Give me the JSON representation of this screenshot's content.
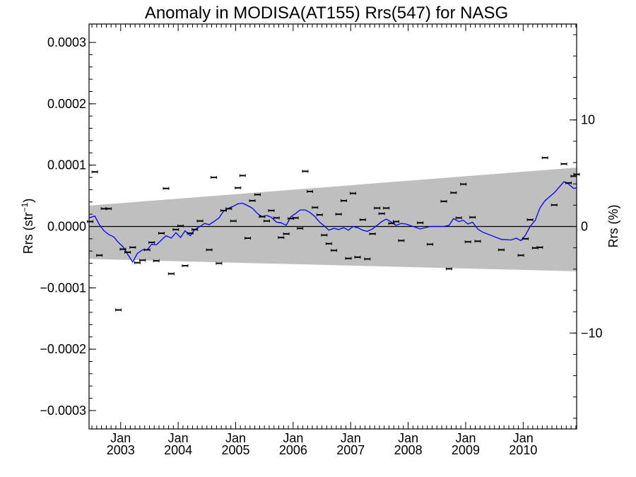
{
  "chart_data": {
    "type": "scatter",
    "title": "Anomaly in MODISA(AT155) Rrs(547) for NASG",
    "ylabel_left": "Rrs (str",
    "ylabel_left_sup": "−1",
    "ylabel_left_close": ")",
    "ylabel_right": "Rrs (%)",
    "xlim": [
      2002.45,
      2010.93
    ],
    "ylim": [
      -0.00033,
      0.00033
    ],
    "ylim_right": [
      -19.0,
      19.0
    ],
    "y_ticks": [
      {
        "value": 0.0003,
        "label": "0.0003"
      },
      {
        "value": 0.0002,
        "label": "0.0002"
      },
      {
        "value": 0.0001,
        "label": "0.0001"
      },
      {
        "value": 0.0,
        "label": "0.0000"
      },
      {
        "value": -0.0001,
        "label": "−0.0001"
      },
      {
        "value": -0.0002,
        "label": "−0.0002"
      },
      {
        "value": -0.0003,
        "label": "−0.0003"
      }
    ],
    "y_right_ticks": [
      {
        "value": 10,
        "label": "10"
      },
      {
        "value": 0,
        "label": "0"
      },
      {
        "value": -10,
        "label": "−10"
      }
    ],
    "x_ticks": [
      {
        "value": 2003.0,
        "month": "Jan",
        "year": "2003"
      },
      {
        "value": 2004.0,
        "month": "Jan",
        "year": "2004"
      },
      {
        "value": 2005.0,
        "month": "Jan",
        "year": "2005"
      },
      {
        "value": 2006.0,
        "month": "Jan",
        "year": "2006"
      },
      {
        "value": 2007.0,
        "month": "Jan",
        "year": "2007"
      },
      {
        "value": 2008.0,
        "month": "Jan",
        "year": "2008"
      },
      {
        "value": 2009.0,
        "month": "Jan",
        "year": "2009"
      },
      {
        "value": 2010.0,
        "month": "Jan",
        "year": "2010"
      }
    ],
    "band": {
      "x": [
        2002.45,
        2010.93
      ],
      "upper": [
        3.4e-05,
        9.6e-05
      ],
      "lower": [
        -5.3e-05,
        -7.3e-05
      ]
    },
    "points": [
      [
        2002.47,
        8e-06
      ],
      [
        2002.55,
        8.9e-05
      ],
      [
        2002.63,
        -4.7e-05
      ],
      [
        2002.71,
        2.9e-05
      ],
      [
        2002.79,
        2.9e-05
      ],
      [
        2002.96,
        -0.000136
      ],
      [
        2003.04,
        -3.7e-05
      ],
      [
        2003.12,
        -4.2e-05
      ],
      [
        2003.21,
        -3.4e-05
      ],
      [
        2003.29,
        -5.9e-05
      ],
      [
        2003.38,
        -5.5e-05
      ],
      [
        2003.46,
        -3.8e-05
      ],
      [
        2003.54,
        -2.6e-05
      ],
      [
        2003.62,
        -5.6e-05
      ],
      [
        2003.71,
        -1.1e-05
      ],
      [
        2003.79,
        6.2e-05
      ],
      [
        2003.88,
        -7.7e-05
      ],
      [
        2003.96,
        -5e-06
      ],
      [
        2004.04,
        1e-06
      ],
      [
        2004.12,
        -6.4e-05
      ],
      [
        2004.21,
        -1.1e-05
      ],
      [
        2004.29,
        -5e-06
      ],
      [
        2004.38,
        9e-06
      ],
      [
        2004.54,
        -3.8e-05
      ],
      [
        2004.62,
        8e-05
      ],
      [
        2004.71,
        -6e-05
      ],
      [
        2004.79,
        2.6e-05
      ],
      [
        2004.88,
        2.9e-05
      ],
      [
        2004.96,
        9e-06
      ],
      [
        2005.04,
        6.3e-05
      ],
      [
        2005.12,
        8.3e-05
      ],
      [
        2005.21,
        -1.9e-05
      ],
      [
        2005.29,
        4.2e-05
      ],
      [
        2005.38,
        5.2e-05
      ],
      [
        2005.46,
        1.6e-05
      ],
      [
        2005.54,
        9e-06
      ],
      [
        2005.62,
        2.6e-05
      ],
      [
        2005.71,
        1.4e-05
      ],
      [
        2005.79,
        -1.8e-05
      ],
      [
        2005.88,
        -1.2e-05
      ],
      [
        2005.96,
        1.3e-05
      ],
      [
        2006.04,
        1.4e-05
      ],
      [
        2006.12,
        -3e-06
      ],
      [
        2006.21,
        9e-05
      ],
      [
        2006.29,
        5.7e-05
      ],
      [
        2006.38,
        3.1e-05
      ],
      [
        2006.46,
        1.9e-05
      ],
      [
        2006.54,
        -1.4e-05
      ],
      [
        2006.62,
        -2.8e-05
      ],
      [
        2006.71,
        -3.9e-05
      ],
      [
        2006.79,
        2e-05
      ],
      [
        2006.88,
        4.2e-05
      ],
      [
        2006.96,
        -5.2e-05
      ],
      [
        2007.04,
        5.4e-05
      ],
      [
        2007.12,
        -5e-05
      ],
      [
        2007.21,
        1.1e-05
      ],
      [
        2007.29,
        -5.3e-05
      ],
      [
        2007.38,
        -1.2e-05
      ],
      [
        2007.46,
        3e-05
      ],
      [
        2007.54,
        2.1e-05
      ],
      [
        2007.62,
        3e-05
      ],
      [
        2007.71,
        5e-06
      ],
      [
        2007.79,
        8e-06
      ],
      [
        2007.88,
        -2.3e-05
      ],
      [
        2008.21,
        6e-06
      ],
      [
        2008.38,
        -2.9e-05
      ],
      [
        2008.62,
        4.1e-05
      ],
      [
        2008.71,
        -6.9e-05
      ],
      [
        2008.79,
        5.5e-05
      ],
      [
        2008.88,
        1.4e-05
      ],
      [
        2008.96,
        6.9e-05
      ],
      [
        2009.04,
        -2.5e-05
      ],
      [
        2009.12,
        1.5e-05
      ],
      [
        2009.21,
        -2.4e-05
      ],
      [
        2009.62,
        -3.8e-05
      ],
      [
        2009.96,
        -4.7e-05
      ],
      [
        2010.04,
        -2e-05
      ],
      [
        2010.12,
        1.1e-05
      ],
      [
        2010.21,
        -3.5e-05
      ],
      [
        2010.29,
        -3.4e-05
      ],
      [
        2010.38,
        0.000112
      ],
      [
        2010.54,
        3.5e-05
      ],
      [
        2010.71,
        0.000102
      ],
      [
        2010.79,
        7.1e-05
      ],
      [
        2010.88,
        8.2e-05
      ],
      [
        2010.93,
        8.5e-05
      ]
    ],
    "smooth_line": {
      "x": [
        2002.45,
        2002.55,
        2002.63,
        2002.71,
        2002.79,
        2002.88,
        2002.96,
        2003.04,
        2003.12,
        2003.21,
        2003.29,
        2003.38,
        2003.46,
        2003.54,
        2003.62,
        2003.71,
        2003.79,
        2003.88,
        2003.96,
        2004.04,
        2004.12,
        2004.21,
        2004.29,
        2004.38,
        2004.46,
        2004.54,
        2004.62,
        2004.71,
        2004.79,
        2004.88,
        2004.96,
        2005.04,
        2005.12,
        2005.21,
        2005.29,
        2005.38,
        2005.46,
        2005.54,
        2005.62,
        2005.71,
        2005.79,
        2005.88,
        2005.96,
        2006.04,
        2006.12,
        2006.21,
        2006.29,
        2006.38,
        2006.46,
        2006.54,
        2006.62,
        2006.71,
        2006.79,
        2006.88,
        2006.96,
        2007.04,
        2007.12,
        2007.21,
        2007.29,
        2007.38,
        2007.46,
        2007.54,
        2007.62,
        2007.71,
        2007.79,
        2007.88,
        2007.96,
        2008.21,
        2008.38,
        2008.62,
        2008.71,
        2008.79,
        2008.88,
        2008.96,
        2009.04,
        2009.12,
        2009.21,
        2009.29,
        2009.62,
        2009.79,
        2009.88,
        2009.96,
        2010.04,
        2010.12,
        2010.21,
        2010.29,
        2010.38,
        2010.54,
        2010.71,
        2010.79,
        2010.88,
        2010.93
      ],
      "y": [
        1.4e-05,
        1.7e-05,
        3e-06,
        -7e-06,
        -1.3e-05,
        -1.7e-05,
        -2.6e-05,
        -3.3e-05,
        -4.5e-05,
        -5.8e-05,
        -4.4e-05,
        -3.8e-05,
        -3.8e-05,
        -2.9e-05,
        -3e-05,
        -2.2e-05,
        -1.5e-05,
        -1.9e-05,
        -1e-05,
        -1.8e-05,
        -7e-06,
        -1.5e-05,
        -5e-06,
        0.0,
        5e-06,
        3e-06,
        8e-06,
        1.4e-05,
        2.5e-05,
        3e-05,
        3.3e-05,
        3.7e-05,
        3.8e-05,
        3.4e-05,
        3e-05,
        2.1e-05,
        1.6e-05,
        1.8e-05,
        1.5e-05,
        7e-06,
        6e-06,
        2e-06,
        1.6e-05,
        2.1e-05,
        2.7e-05,
        2.7e-05,
        2.3e-05,
        1.6e-05,
        7e-06,
        1e-06,
        -6e-06,
        -3e-06,
        -5e-06,
        -2e-06,
        -6e-06,
        0.0,
        -2e-06,
        -6e-06,
        -8e-06,
        -4e-06,
        2e-06,
        8e-06,
        1.2e-05,
        7e-06,
        2e-06,
        5e-06,
        4e-06,
        -4e-06,
        0.0,
        0.0,
        2e-06,
        1.3e-05,
        8e-06,
        1e-05,
        4e-06,
        7e-06,
        -4e-06,
        -9e-06,
        -2.1e-05,
        -2.2e-05,
        -1.9e-05,
        -2.3e-05,
        -1.4e-05,
        0.0,
        1e-05,
        3e-05,
        4.2e-05,
        5.5e-05,
        7.3e-05,
        6.9e-05,
        6.2e-05,
        6.3e-05
      ]
    },
    "grid": false,
    "colors": {
      "band": "#bfbfbf",
      "line": "#0000ff",
      "points": "#000000",
      "zero_line": "#000000"
    }
  }
}
